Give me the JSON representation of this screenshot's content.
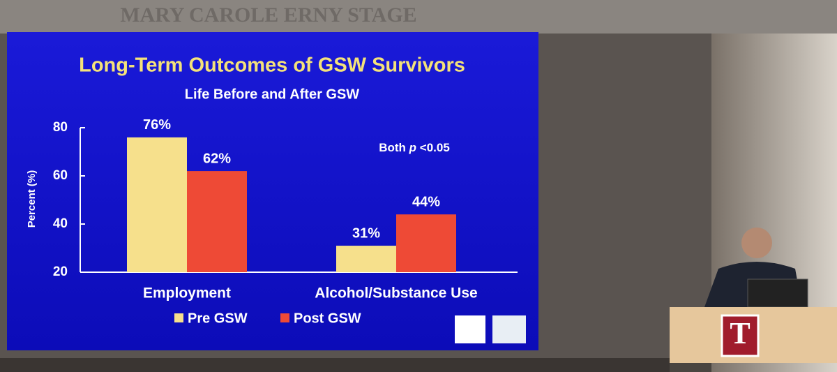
{
  "stage_sign": "MARY CAROLE ERNY STAGE",
  "podium_logo": "T",
  "chart_data": {
    "type": "bar",
    "title": "Long-Term Outcomes of GSW Survivors",
    "subtitle": "Life Before and After GSW",
    "y_label": "Percent (%)",
    "annotation": [
      "Both",
      "p",
      "<0.05"
    ],
    "categories": [
      "Employment",
      "Alcohol/Substance Use"
    ],
    "series": [
      {
        "name": "Pre GSW",
        "color": "#f6e08c",
        "values": [
          76,
          31
        ],
        "value_labels": [
          "76%",
          "31%"
        ]
      },
      {
        "name": "Post GSW",
        "color": "#ee4a36",
        "values": [
          62,
          44
        ],
        "value_labels": [
          "62%",
          "44%"
        ]
      }
    ],
    "ylim": [
      20,
      80
    ],
    "yticks": [
      20,
      40,
      60,
      80
    ],
    "legend": "bottom"
  }
}
